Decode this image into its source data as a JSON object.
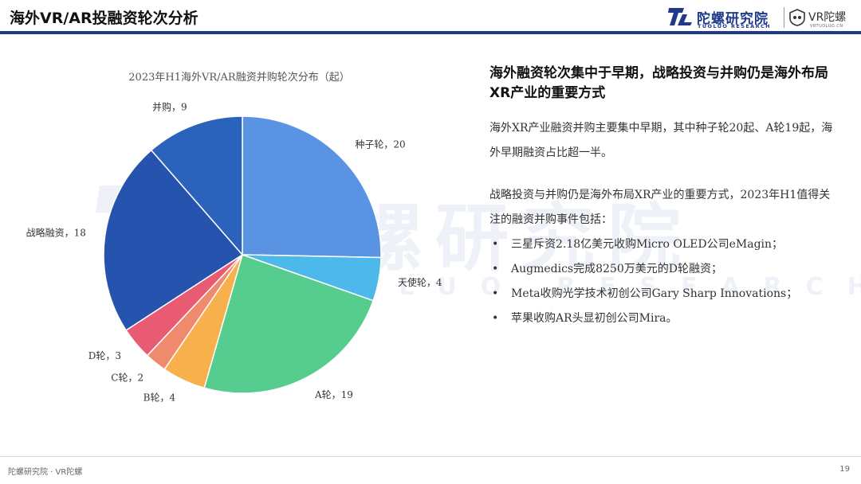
{
  "header": {
    "title": "海外VR/AR投融资轮次分析",
    "brand_cn": "陀螺研究院",
    "brand_en": "TUOLUO RESEARCH",
    "brand_vr": "VR陀螺",
    "brand_vr_sub": "VRTUOLUO.CN"
  },
  "watermark": {
    "cn": "陀螺研究院",
    "en": "TUOLUO RESEARCH"
  },
  "chart_data": {
    "type": "pie",
    "title": "2023年H1海外VR/AR融资并购轮次分布（起）",
    "categories": [
      "种子轮",
      "天使轮",
      "A轮",
      "B轮",
      "C轮",
      "D轮",
      "战略融资",
      "并购"
    ],
    "values": [
      20,
      4,
      19,
      4,
      2,
      3,
      18,
      9
    ],
    "colors": [
      "#5b93e3",
      "#4db8ea",
      "#56cc8f",
      "#f7b04c",
      "#ef8a6d",
      "#e95b72",
      "#2553ae",
      "#2b62bb"
    ],
    "labels": [
      "种子轮，20",
      "天使轮，4",
      "A轮，19",
      "B轮，4",
      "C轮，2",
      "D轮，3",
      "战略融资，18",
      "并购，9"
    ],
    "start_angle_deg": 0,
    "direction": "clockwise",
    "legend": "none"
  },
  "panel": {
    "heading": "海外融资轮次集中于早期，战略投资与并购仍是海外布局XR产业的重要方式",
    "para1": "海外XR产业融资并购主要集中早期，其中种子轮20起、A轮19起，海外早期融资占比超一半。",
    "para2": "战略投资与并购仍是海外布局XR产业的重要方式，2023年H1值得关注的融资并购事件包括：",
    "bullets": [
      "三星斥资2.18亿美元收购Micro OLED公司eMagin；",
      "Augmedics完成8250万美元的D轮融资；",
      "Meta收购光学技术初创公司Gary Sharp Innovations；",
      "苹果收购AR头显初创公司Mira。"
    ]
  },
  "footer": {
    "left": "陀螺研究院 · VR陀螺",
    "page": "19"
  }
}
